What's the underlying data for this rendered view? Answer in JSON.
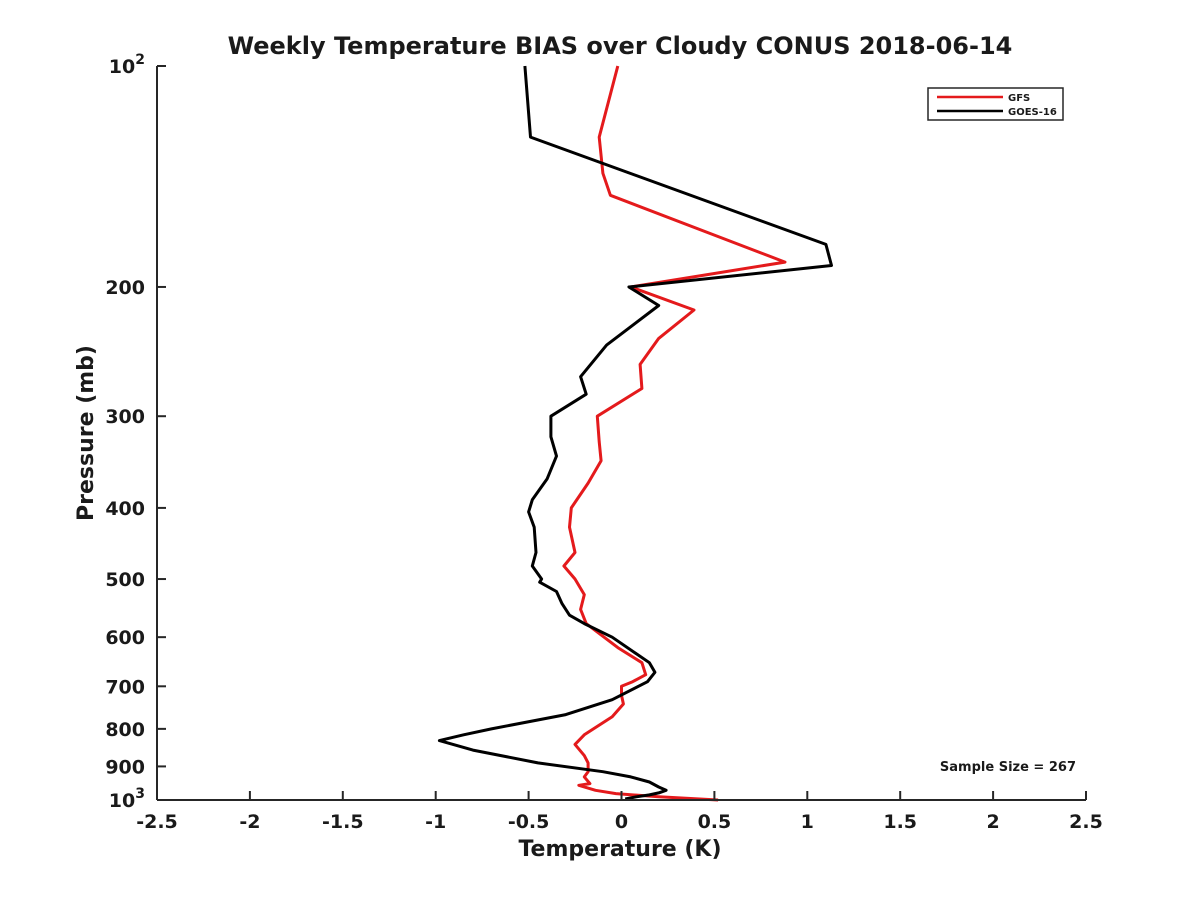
{
  "chart_data": {
    "type": "line",
    "title": "Weekly Temperature BIAS over Cloudy CONUS 2018-06-14",
    "xlabel": "Temperature (K)",
    "ylabel": "Pressure (mb)",
    "xlim": [
      -2.5,
      2.5
    ],
    "ylim": [
      1000,
      100
    ],
    "y_scale": "log",
    "x_ticks": [
      "-2.5",
      "-2",
      "-1.5",
      "-1",
      "-0.5",
      "0",
      "0.5",
      "1",
      "1.5",
      "2",
      "2.5"
    ],
    "x_tick_values": [
      -2.5,
      -2,
      -1.5,
      -1,
      -0.5,
      0,
      0.5,
      1,
      1.5,
      2,
      2.5
    ],
    "y_ticks": [
      {
        "value": 100,
        "base": "10",
        "exp": "2"
      },
      {
        "value": 200,
        "label": "200"
      },
      {
        "value": 300,
        "label": "300"
      },
      {
        "value": 400,
        "label": "400"
      },
      {
        "value": 500,
        "label": "500"
      },
      {
        "value": 600,
        "label": "600"
      },
      {
        "value": 700,
        "label": "700"
      },
      {
        "value": 800,
        "label": "800"
      },
      {
        "value": 900,
        "label": "900"
      },
      {
        "value": 1000,
        "base": "10",
        "exp": "3"
      }
    ],
    "grid": false,
    "legend_position": "top-right",
    "annotation": "Sample Size = 267",
    "series": [
      {
        "name": "GFS",
        "color": "#e41a1c",
        "points": [
          [
            -0.02,
            100
          ],
          [
            -0.12,
            125
          ],
          [
            -0.1,
            140
          ],
          [
            -0.06,
            150
          ],
          [
            0.5,
            170
          ],
          [
            0.88,
            185
          ],
          [
            0.05,
            200
          ],
          [
            0.39,
            215
          ],
          [
            0.2,
            235
          ],
          [
            0.1,
            255
          ],
          [
            0.11,
            275
          ],
          [
            -0.13,
            300
          ],
          [
            -0.12,
            325
          ],
          [
            -0.11,
            345
          ],
          [
            -0.18,
            370
          ],
          [
            -0.27,
            400
          ],
          [
            -0.28,
            425
          ],
          [
            -0.25,
            460
          ],
          [
            -0.31,
            480
          ],
          [
            -0.25,
            500
          ],
          [
            -0.2,
            525
          ],
          [
            -0.22,
            550
          ],
          [
            -0.19,
            575
          ],
          [
            -0.02,
            620
          ],
          [
            0.11,
            650
          ],
          [
            0.13,
            675
          ],
          [
            0.06,
            690
          ],
          [
            0.0,
            700
          ],
          [
            0.0,
            720
          ],
          [
            0.01,
            740
          ],
          [
            -0.05,
            770
          ],
          [
            -0.2,
            815
          ],
          [
            -0.25,
            840
          ],
          [
            -0.2,
            870
          ],
          [
            -0.18,
            890
          ],
          [
            -0.18,
            915
          ],
          [
            -0.2,
            930
          ],
          [
            -0.17,
            950
          ],
          [
            -0.23,
            955
          ],
          [
            -0.14,
            970
          ],
          [
            -0.03,
            980
          ],
          [
            0.2,
            990
          ],
          [
            0.52,
            1000
          ]
        ]
      },
      {
        "name": "GOES-16",
        "color": "#000000",
        "points": [
          [
            -0.52,
            100
          ],
          [
            -0.49,
            125
          ],
          [
            1.1,
            175
          ],
          [
            1.13,
            187
          ],
          [
            0.04,
            200
          ],
          [
            0.2,
            212
          ],
          [
            -0.08,
            240
          ],
          [
            -0.22,
            265
          ],
          [
            -0.19,
            280
          ],
          [
            -0.38,
            300
          ],
          [
            -0.38,
            320
          ],
          [
            -0.35,
            340
          ],
          [
            -0.4,
            365
          ],
          [
            -0.48,
            390
          ],
          [
            -0.5,
            405
          ],
          [
            -0.47,
            425
          ],
          [
            -0.46,
            460
          ],
          [
            -0.48,
            480
          ],
          [
            -0.43,
            500
          ],
          [
            -0.44,
            505
          ],
          [
            -0.35,
            520
          ],
          [
            -0.32,
            540
          ],
          [
            -0.28,
            560
          ],
          [
            -0.2,
            575
          ],
          [
            -0.05,
            600
          ],
          [
            0.15,
            650
          ],
          [
            0.18,
            670
          ],
          [
            0.14,
            690
          ],
          [
            -0.05,
            730
          ],
          [
            -0.3,
            765
          ],
          [
            -0.7,
            800
          ],
          [
            -0.85,
            815
          ],
          [
            -0.98,
            830
          ],
          [
            -0.8,
            855
          ],
          [
            -0.45,
            890
          ],
          [
            -0.1,
            915
          ],
          [
            0.05,
            930
          ],
          [
            0.15,
            945
          ],
          [
            0.2,
            960
          ],
          [
            0.24,
            970
          ],
          [
            0.2,
            978
          ],
          [
            0.15,
            984
          ],
          [
            0.08,
            990
          ],
          [
            0.02,
            997
          ]
        ]
      }
    ]
  }
}
